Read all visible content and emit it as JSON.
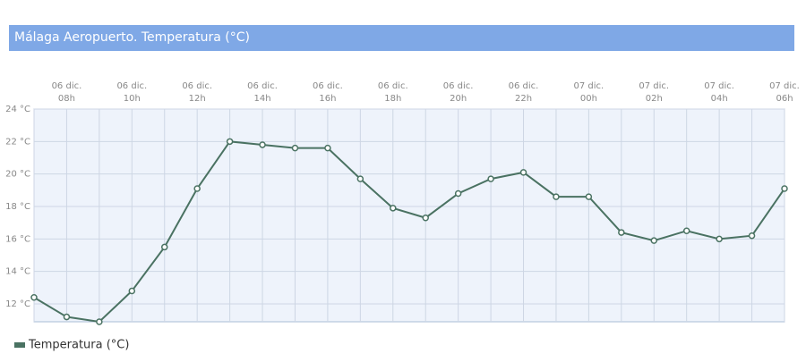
{
  "chart_data": {
    "type": "line",
    "title": "Málaga Aeropuerto. Temperatura (°C)",
    "categories": [
      null,
      [
        "06 dic.",
        "08h"
      ],
      null,
      [
        "06 dic.",
        "10h"
      ],
      null,
      [
        "06 dic.",
        "12h"
      ],
      null,
      [
        "06 dic.",
        "14h"
      ],
      null,
      [
        "06 dic.",
        "16h"
      ],
      null,
      [
        "06 dic.",
        "18h"
      ],
      null,
      [
        "06 dic.",
        "20h"
      ],
      null,
      [
        "06 dic.",
        "22h"
      ],
      null,
      [
        "07 dic.",
        "00h"
      ],
      null,
      [
        "07 dic.",
        "02h"
      ],
      null,
      [
        "07 dic.",
        "04h"
      ],
      null,
      [
        "07 dic.",
        "06h"
      ]
    ],
    "series": [
      {
        "name": "Temperatura (°C)",
        "color": "#4a7262",
        "values": [
          12.4,
          11.2,
          10.9,
          12.8,
          15.5,
          19.1,
          22.0,
          21.8,
          21.6,
          21.6,
          19.7,
          17.9,
          17.3,
          18.8,
          19.7,
          20.1,
          18.6,
          18.6,
          16.4,
          15.9,
          16.5,
          16.0,
          16.2,
          19.1
        ]
      }
    ],
    "ylim": [
      10.9,
      24
    ],
    "yticks": [
      {
        "value": 12,
        "label": "12 °C"
      },
      {
        "value": 14,
        "label": "14 °C"
      },
      {
        "value": 16,
        "label": "16 °C"
      },
      {
        "value": 18,
        "label": "18 °C"
      },
      {
        "value": 20,
        "label": "20 °C"
      },
      {
        "value": 22,
        "label": "22 °C"
      },
      {
        "value": 24,
        "label": "24 °C"
      }
    ],
    "grid": true
  }
}
